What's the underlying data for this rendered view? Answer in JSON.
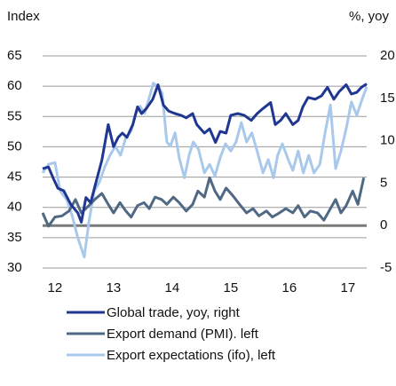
{
  "chart_data": {
    "type": "line",
    "y_axis_label": "Index",
    "y2_axis_label": "%, yoy",
    "xlim": [
      11.79,
      17.32
    ],
    "xticks": [
      12,
      13,
      14,
      15,
      16,
      17
    ],
    "ylim": [
      30,
      65
    ],
    "yticks": [
      30,
      35,
      40,
      45,
      50,
      55,
      60,
      65
    ],
    "y2lim": [
      -5,
      20
    ],
    "y2ticks": [
      -5,
      0,
      5,
      10,
      15,
      20
    ],
    "grid": true,
    "y2_zero_line": true,
    "legend": "bottom",
    "series": [
      {
        "name": "Global trade, yoy, right",
        "color": "#1f3790",
        "axis": "y2",
        "x": [
          11.79,
          11.89,
          11.97,
          12.05,
          12.15,
          12.27,
          12.39,
          12.45,
          12.53,
          12.61,
          12.7,
          12.8,
          12.91,
          13.0,
          13.08,
          13.15,
          13.23,
          13.33,
          13.41,
          13.48,
          13.56,
          13.67,
          13.76,
          13.85,
          13.94,
          14.05,
          14.15,
          14.24,
          14.35,
          14.42,
          14.55,
          14.64,
          14.74,
          14.82,
          14.92,
          15.0,
          15.12,
          15.23,
          15.35,
          15.45,
          15.55,
          15.68,
          15.76,
          15.85,
          15.94,
          16.06,
          16.15,
          16.23,
          16.32,
          16.44,
          16.55,
          16.65,
          16.76,
          16.85,
          16.97,
          17.06,
          17.15,
          17.23,
          17.32
        ],
        "values": [
          6.7,
          6.9,
          5.6,
          4.4,
          4.1,
          2.5,
          1.5,
          0.4,
          3.3,
          2.7,
          5.1,
          7.7,
          11.9,
          9.3,
          10.4,
          10.9,
          10.4,
          11.9,
          14.0,
          13.2,
          13.8,
          14.9,
          16.6,
          14.2,
          13.5,
          13.2,
          13.0,
          12.7,
          13.2,
          11.9,
          10.9,
          11.4,
          9.8,
          11.1,
          10.9,
          13.0,
          13.2,
          13.0,
          12.4,
          13.2,
          13.8,
          14.5,
          11.9,
          12.4,
          13.2,
          11.9,
          12.4,
          14.0,
          15.1,
          14.9,
          15.3,
          16.3,
          14.9,
          15.8,
          16.6,
          15.5,
          15.7,
          16.3,
          16.7
        ]
      },
      {
        "name": "Export demand (PMI). left",
        "color": "#4f6985",
        "axis": "y",
        "x": [
          11.79,
          11.89,
          12.0,
          12.12,
          12.24,
          12.35,
          12.45,
          12.58,
          12.68,
          12.8,
          12.91,
          13.0,
          13.11,
          13.21,
          13.3,
          13.41,
          13.52,
          13.61,
          13.71,
          13.82,
          13.91,
          14.02,
          14.12,
          14.24,
          14.35,
          14.44,
          14.55,
          14.64,
          14.73,
          14.82,
          14.92,
          15.03,
          15.15,
          15.27,
          15.38,
          15.48,
          15.61,
          15.71,
          15.83,
          15.94,
          16.06,
          16.15,
          16.26,
          16.36,
          16.48,
          16.59,
          16.7,
          16.79,
          16.88,
          16.97,
          17.08,
          17.17,
          17.27
        ],
        "values": [
          39.1,
          36.9,
          38.4,
          38.6,
          39.4,
          41.3,
          39.1,
          40.3,
          41.3,
          42.3,
          40.5,
          39.1,
          40.8,
          39.4,
          38.4,
          40.3,
          40.8,
          39.8,
          41.7,
          41.3,
          40.5,
          41.7,
          40.8,
          39.4,
          40.5,
          42.7,
          41.7,
          44.9,
          42.7,
          41.3,
          43.2,
          42.0,
          40.5,
          39.1,
          39.8,
          38.6,
          39.4,
          38.4,
          39.1,
          39.8,
          39.1,
          40.3,
          38.4,
          39.4,
          39.1,
          37.9,
          39.8,
          41.3,
          39.1,
          40.3,
          42.7,
          40.5,
          44.9
        ]
      },
      {
        "name": "Export expectations (ifo), left",
        "color": "#a9c9ec",
        "axis": "y",
        "x": [
          11.79,
          11.89,
          12.0,
          12.09,
          12.2,
          12.3,
          12.39,
          12.5,
          12.58,
          12.67,
          12.76,
          12.85,
          12.94,
          13.03,
          13.12,
          13.21,
          13.3,
          13.38,
          13.45,
          13.53,
          13.61,
          13.68,
          13.76,
          13.83,
          13.91,
          13.97,
          14.05,
          14.12,
          14.21,
          14.29,
          14.36,
          14.45,
          14.55,
          14.64,
          14.73,
          14.82,
          14.91,
          15.0,
          15.09,
          15.18,
          15.27,
          15.36,
          15.45,
          15.55,
          15.64,
          15.73,
          15.8,
          15.88,
          15.98,
          16.06,
          16.15,
          16.24,
          16.33,
          16.42,
          16.52,
          16.61,
          16.7,
          16.79,
          16.88,
          16.97,
          17.06,
          17.15,
          17.24,
          17.32
        ],
        "values": [
          45.7,
          47.1,
          47.4,
          42.7,
          41.3,
          38.4,
          35.0,
          31.8,
          37.6,
          42.7,
          44.2,
          46.7,
          48.6,
          50.1,
          48.6,
          51.5,
          52.6,
          55.5,
          56.7,
          55.5,
          58.1,
          60.5,
          59.9,
          58.9,
          50.8,
          50.1,
          52.3,
          48.2,
          44.9,
          48.6,
          50.8,
          49.6,
          45.7,
          47.1,
          45.2,
          48.2,
          50.5,
          49.3,
          50.8,
          54.0,
          50.8,
          52.3,
          49.3,
          45.7,
          47.9,
          44.9,
          48.6,
          50.5,
          47.9,
          46.1,
          49.3,
          45.7,
          48.6,
          45.7,
          47.1,
          52.3,
          56.9,
          46.4,
          49.3,
          53.0,
          57.4,
          55.2,
          57.8,
          59.9
        ]
      }
    ]
  }
}
